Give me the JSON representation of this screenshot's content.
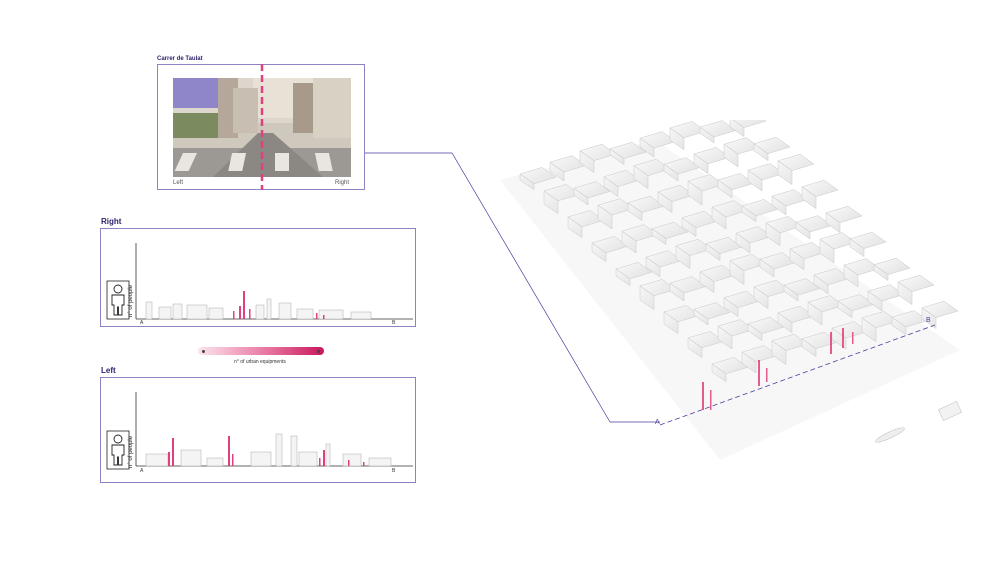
{
  "photo": {
    "title": "Carrer de Taulat",
    "left_caption": "Left",
    "right_caption": "Right"
  },
  "right_panel": {
    "title": "Right",
    "ylabel": "n° of people",
    "start_label": "A",
    "end_label": "B"
  },
  "left_panel": {
    "title": "Left",
    "ylabel": "n° of people",
    "start_label": "A",
    "end_label": "B"
  },
  "legend": {
    "label": "n° of urban equipments",
    "color_low": "#fde4ee",
    "color_high": "#c8175d"
  },
  "map": {
    "start_label": "A",
    "end_label": "B"
  },
  "colors": {
    "accent": "#2d2470",
    "frame": "#8a84c4",
    "pink": "#e0407e"
  }
}
